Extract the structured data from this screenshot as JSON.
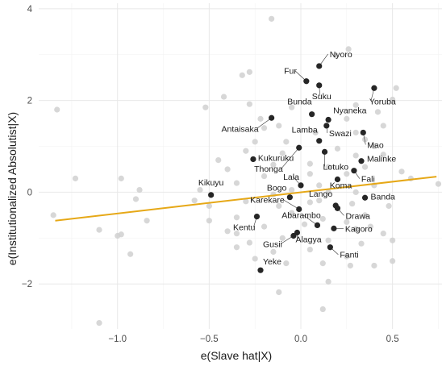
{
  "chart_data": {
    "type": "scatter",
    "xlabel": "e(Slave hat|X)",
    "ylabel": "e(Institutionalized Absolutist|X)",
    "xlim": [
      -1.43,
      0.77
    ],
    "ylim": [
      -2.98,
      4.12
    ],
    "x_ticks": [
      -1.0,
      -0.5,
      0.0,
      0.5
    ],
    "x_tick_labels": [
      "−1.0",
      "−0.5",
      "0.0",
      "0.5"
    ],
    "y_ticks": [
      -2,
      0,
      2,
      4
    ],
    "y_tick_labels": [
      "−2",
      "0",
      "2",
      "4"
    ],
    "grid": true,
    "fit_line": {
      "color": "#E6A817",
      "x": [
        -1.34,
        0.74
      ],
      "y": [
        -0.62,
        0.34
      ]
    },
    "colors": {
      "background_points": "#d0d0d0",
      "labeled_points": "#262626",
      "label_line": "#333333",
      "grid_major": "#e8e8e8",
      "grid_minor": "#f3f3f3"
    },
    "labeled_points": [
      {
        "name": "Nyoro",
        "x": 0.1,
        "y": 2.75
      },
      {
        "name": "Fur",
        "x": 0.03,
        "y": 2.42
      },
      {
        "name": "Suku",
        "x": 0.1,
        "y": 2.33
      },
      {
        "name": "Yoruba",
        "x": 0.4,
        "y": 2.27
      },
      {
        "name": "Bunda",
        "x": 0.06,
        "y": 1.7
      },
      {
        "name": "Nyaneka",
        "x": 0.15,
        "y": 1.58
      },
      {
        "name": "Antaisaka",
        "x": -0.16,
        "y": 1.62
      },
      {
        "name": "Swazi",
        "x": 0.14,
        "y": 1.45
      },
      {
        "name": "Mao",
        "x": 0.34,
        "y": 1.3
      },
      {
        "name": "Lamba",
        "x": 0.1,
        "y": 1.12
      },
      {
        "name": "Kukuruku",
        "x": -0.26,
        "y": 0.72
      },
      {
        "name": "Lotuko",
        "x": 0.13,
        "y": 0.88
      },
      {
        "name": "Malinke",
        "x": 0.33,
        "y": 0.68
      },
      {
        "name": "Thonga",
        "x": -0.01,
        "y": 0.97
      },
      {
        "name": "Fali",
        "x": 0.29,
        "y": 0.47
      },
      {
        "name": "Lala",
        "x": 0.0,
        "y": 0.15
      },
      {
        "name": "Koma",
        "x": 0.2,
        "y": 0.28
      },
      {
        "name": "Kikuyu",
        "x": -0.49,
        "y": -0.06
      },
      {
        "name": "Banda",
        "x": 0.35,
        "y": -0.12
      },
      {
        "name": "Bogo",
        "x": -0.06,
        "y": -0.11
      },
      {
        "name": "Lango",
        "x": 0.19,
        "y": -0.29
      },
      {
        "name": "Karekare",
        "x": -0.01,
        "y": -0.37
      },
      {
        "name": "Drawa",
        "x": 0.2,
        "y": -0.35
      },
      {
        "name": "Kentu",
        "x": -0.24,
        "y": -0.53
      },
      {
        "name": "Abarambo",
        "x": 0.09,
        "y": -0.72
      },
      {
        "name": "Kagoro",
        "x": 0.18,
        "y": -0.79
      },
      {
        "name": "Alagya",
        "x": -0.02,
        "y": -0.88
      },
      {
        "name": "Gusii",
        "x": -0.04,
        "y": -0.95
      },
      {
        "name": "Fanti",
        "x": 0.16,
        "y": -1.2
      },
      {
        "name": "Yeke",
        "x": -0.22,
        "y": -1.7
      }
    ],
    "background_points": [
      [
        -0.16,
        3.78
      ],
      [
        0.26,
        3.12
      ],
      [
        0.19,
        2.98
      ],
      [
        -0.28,
        2.62
      ],
      [
        -0.32,
        2.55
      ],
      [
        0.52,
        2.27
      ],
      [
        -0.42,
        2.08
      ],
      [
        -1.33,
        1.8
      ],
      [
        0.5,
        2.02
      ],
      [
        -0.52,
        1.85
      ],
      [
        0.3,
        1.9
      ],
      [
        -0.28,
        1.92
      ],
      [
        0.42,
        1.75
      ],
      [
        -0.22,
        1.6
      ],
      [
        0.25,
        1.6
      ],
      [
        -0.12,
        1.45
      ],
      [
        0.45,
        1.45
      ],
      [
        0.3,
        1.3
      ],
      [
        -0.2,
        1.4
      ],
      [
        0.35,
        1.15
      ],
      [
        -0.08,
        1.1
      ],
      [
        0.4,
        1.0
      ],
      [
        -0.25,
        1.1
      ],
      [
        0.2,
        0.95
      ],
      [
        0.3,
        0.8
      ],
      [
        -0.1,
        0.85
      ],
      [
        -0.3,
        0.9
      ],
      [
        0.45,
        0.82
      ],
      [
        0.05,
        0.62
      ],
      [
        -0.15,
        0.6
      ],
      [
        0.15,
        0.55
      ],
      [
        0.35,
        0.55
      ],
      [
        -0.4,
        0.5
      ],
      [
        0.25,
        0.4
      ],
      [
        0.05,
        0.4
      ],
      [
        -0.2,
        0.35
      ],
      [
        -0.35,
        0.2
      ],
      [
        0.1,
        0.15
      ],
      [
        0.4,
        0.15
      ],
      [
        -0.05,
        0.05
      ],
      [
        0.3,
        0.0
      ],
      [
        0.15,
        0.0
      ],
      [
        -0.15,
        -0.05
      ],
      [
        -0.58,
        -0.18
      ],
      [
        -0.9,
        -0.15
      ],
      [
        -0.3,
        -0.2
      ],
      [
        0.1,
        -0.18
      ],
      [
        0.28,
        -0.25
      ],
      [
        -0.12,
        -0.3
      ],
      [
        0.05,
        -0.22
      ],
      [
        -0.5,
        -0.3
      ],
      [
        -0.05,
        -0.45
      ],
      [
        0.35,
        -0.5
      ],
      [
        -0.35,
        -0.55
      ],
      [
        0.12,
        -0.58
      ],
      [
        -0.5,
        -0.62
      ],
      [
        0.25,
        -0.65
      ],
      [
        -0.2,
        -0.75
      ],
      [
        0.02,
        -0.7
      ],
      [
        0.3,
        -0.8
      ],
      [
        -0.35,
        -0.9
      ],
      [
        0.45,
        -0.9
      ],
      [
        -0.1,
        -1.0
      ],
      [
        0.15,
        -1.05
      ],
      [
        -0.28,
        -1.1
      ],
      [
        0.33,
        -1.12
      ],
      [
        0.05,
        -1.25
      ],
      [
        -0.15,
        -1.3
      ],
      [
        0.25,
        -1.4
      ],
      [
        -0.35,
        -1.2
      ],
      [
        0.5,
        -1.05
      ],
      [
        0.4,
        -1.6
      ],
      [
        -0.08,
        -1.55
      ],
      [
        0.12,
        -1.55
      ],
      [
        0.15,
        -1.95
      ],
      [
        0.27,
        -1.6
      ],
      [
        -0.25,
        -1.45
      ],
      [
        -1.23,
        0.3
      ],
      [
        -0.98,
        0.3
      ],
      [
        -0.88,
        0.05
      ],
      [
        -1.35,
        -0.5
      ],
      [
        -0.98,
        -0.92
      ],
      [
        -1.1,
        -0.82
      ],
      [
        -1.0,
        -0.95
      ],
      [
        -0.93,
        -1.35
      ],
      [
        -0.84,
        -0.62
      ],
      [
        -1.1,
        -2.85
      ],
      [
        0.75,
        0.18
      ],
      [
        -0.12,
        -2.18
      ],
      [
        0.12,
        -2.55
      ],
      [
        0.5,
        -1.5
      ],
      [
        0.55,
        0.45
      ],
      [
        0.6,
        0.3
      ],
      [
        0.48,
        -0.3
      ],
      [
        0.38,
        -0.75
      ],
      [
        -0.45,
        0.7
      ],
      [
        -0.4,
        -0.85
      ],
      [
        -0.55,
        0.05
      ],
      [
        0.08,
        1.3
      ],
      [
        -0.05,
        1.85
      ]
    ]
  }
}
